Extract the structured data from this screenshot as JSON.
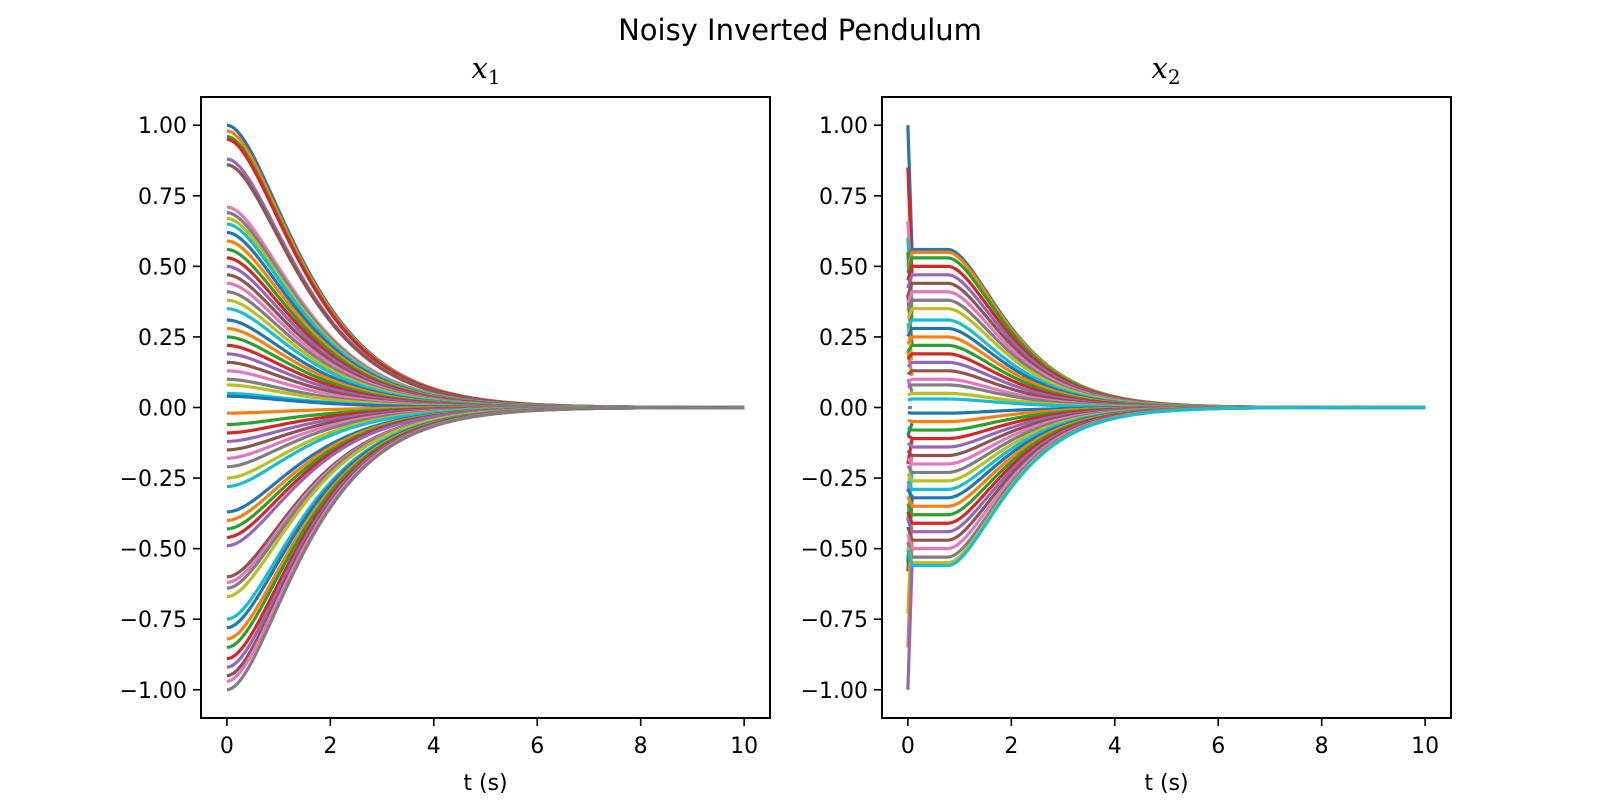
{
  "figure": {
    "title": "Noisy Inverted Pendulum"
  },
  "chart_data": [
    {
      "type": "line",
      "title_var": "x",
      "title_sub": "1",
      "xlabel": "t (s)",
      "ylabel": "",
      "xlim": [
        -0.5,
        10.5
      ],
      "ylim": [
        -1.1,
        1.1
      ],
      "xticks": [
        0,
        2,
        4,
        6,
        8,
        10
      ],
      "xtick_labels": [
        "0",
        "2",
        "4",
        "6",
        "8",
        "10"
      ],
      "yticks": [
        1.0,
        0.75,
        0.5,
        0.25,
        0.0,
        -0.25,
        -0.5,
        -0.75,
        -1.0
      ],
      "ytick_labels": [
        "1.00",
        "0.75",
        "0.50",
        "0.25",
        "0.00",
        "−0.25",
        "−0.50",
        "−0.75",
        "−1.00"
      ],
      "grid": false,
      "t_end": 10,
      "initial_values": [
        1.0,
        0.98,
        0.96,
        0.95,
        0.88,
        0.86,
        0.71,
        0.69,
        0.67,
        0.65,
        0.62,
        0.59,
        0.56,
        0.53,
        0.5,
        0.47,
        0.44,
        0.41,
        0.38,
        0.35,
        0.31,
        0.28,
        0.25,
        0.22,
        0.19,
        0.16,
        0.13,
        0.1,
        0.08,
        0.05,
        0.04,
        -0.02,
        -0.06,
        -0.09,
        -0.12,
        -0.15,
        -0.18,
        -0.21,
        -0.25,
        -0.28,
        -0.37,
        -0.4,
        -0.43,
        -0.46,
        -0.49,
        -0.6,
        -0.62,
        -0.64,
        -0.67,
        -0.75,
        -0.78,
        -0.82,
        -0.85,
        -0.89,
        -0.92,
        -0.95,
        -0.97,
        -1.0
      ]
    },
    {
      "type": "line",
      "title_var": "x",
      "title_sub": "2",
      "xlabel": "t (s)",
      "ylabel": "",
      "xlim": [
        -0.5,
        10.5
      ],
      "ylim": [
        -1.1,
        1.1
      ],
      "xticks": [
        0,
        2,
        4,
        6,
        8,
        10
      ],
      "xtick_labels": [
        "0",
        "2",
        "4",
        "6",
        "8",
        "10"
      ],
      "yticks": [
        1.0,
        0.75,
        0.5,
        0.25,
        0.0,
        -0.25,
        -0.5,
        -0.75,
        -1.0
      ],
      "ytick_labels": [
        "1.00",
        "0.75",
        "0.50",
        "0.25",
        "0.00",
        "−0.25",
        "−0.50",
        "−0.75",
        "−1.00"
      ],
      "grid": false,
      "t_end": 10,
      "initial_values": [
        1.0,
        0.85,
        0.66,
        0.6,
        0.55,
        0.4,
        0.3,
        0.2,
        0.1,
        0.0,
        -0.1,
        -0.2,
        -0.3,
        -0.4,
        -0.55,
        -0.58,
        -0.73,
        -0.85,
        -1.0
      ],
      "plateau_values": [
        0.56,
        0.55,
        0.53,
        0.5,
        0.47,
        0.44,
        0.41,
        0.38,
        0.35,
        0.31,
        0.28,
        0.25,
        0.22,
        0.19,
        0.16,
        0.13,
        0.1,
        0.08,
        0.05,
        0.03,
        -0.02,
        -0.05,
        -0.08,
        -0.11,
        -0.14,
        -0.17,
        -0.2,
        -0.23,
        -0.26,
        -0.29,
        -0.32,
        -0.35,
        -0.38,
        -0.41,
        -0.44,
        -0.47,
        -0.5,
        -0.53,
        -0.55,
        -0.56
      ]
    }
  ],
  "colors": {
    "cycle": [
      "#1f77b4",
      "#ff7f0e",
      "#2ca02c",
      "#d62728",
      "#9467bd",
      "#8c564b",
      "#e377c2",
      "#7f7f7f",
      "#bcbd22",
      "#17becf"
    ],
    "axes": "#000000",
    "background": "#ffffff"
  }
}
